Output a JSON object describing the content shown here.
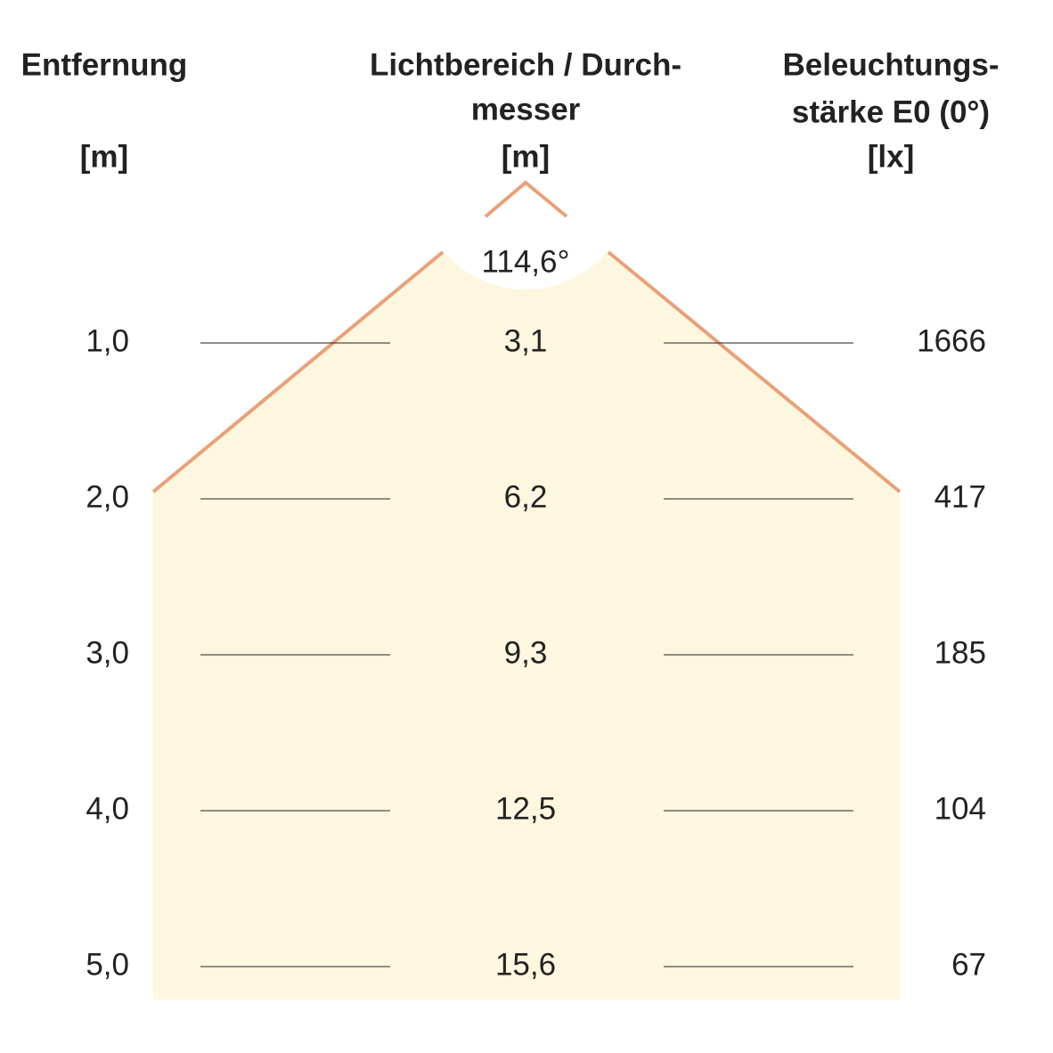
{
  "headers": [
    {
      "lines": [
        "Entfernung",
        "[m]"
      ]
    },
    {
      "lines": [
        "Lichtbereich / Durch-",
        "messer",
        "[m]"
      ]
    },
    {
      "lines": [
        "Beleuchtungs-",
        "stärke E0 (0°)",
        "[lx]"
      ]
    }
  ],
  "angle": "114,6°",
  "rows": [
    [
      "1,0",
      "3,1",
      "1666"
    ],
    [
      "2,0",
      "6,2",
      "417"
    ],
    [
      "3,0",
      "9,3",
      "185"
    ],
    [
      "4,0",
      "12,5",
      "104"
    ],
    [
      "5,0",
      "15,6",
      "67"
    ]
  ]
}
